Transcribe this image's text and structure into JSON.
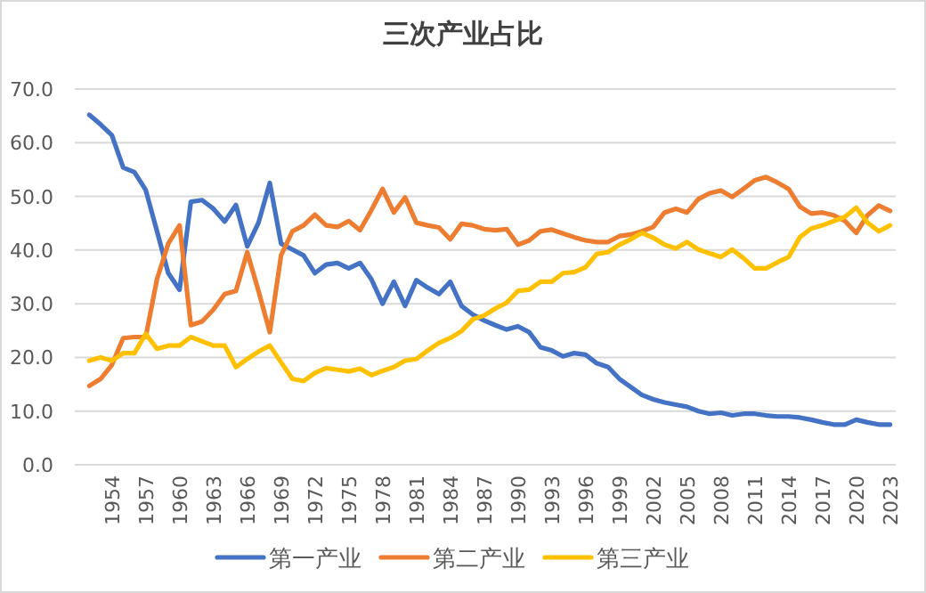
{
  "chart_data": {
    "type": "line",
    "title": "三次产业占比",
    "categories": [
      null,
      null,
      "1954",
      null,
      null,
      "1957",
      null,
      null,
      "1960",
      null,
      null,
      "1963",
      null,
      null,
      "1966",
      null,
      null,
      "1969",
      null,
      null,
      "1972",
      null,
      null,
      "1975",
      null,
      null,
      "1978",
      null,
      null,
      "1981",
      null,
      null,
      "1984",
      null,
      null,
      "1987",
      null,
      null,
      "1990",
      null,
      null,
      "1993",
      null,
      null,
      "1996",
      null,
      null,
      "1999",
      null,
      null,
      "2002",
      null,
      null,
      "2005",
      null,
      null,
      "2008",
      null,
      null,
      "2011",
      null,
      null,
      "2014",
      null,
      null,
      "2017",
      null,
      null,
      "2020",
      null,
      null,
      "2023"
    ],
    "series": [
      {
        "name": "第一产业",
        "color": "#4472c4",
        "values": [
          65.2,
          63.4,
          61.4,
          55.4,
          54.5,
          51.2,
          43.5,
          35.7,
          32.6,
          49.0,
          49.3,
          47.7,
          45.3,
          48.4,
          40.7,
          45.1,
          52.5,
          41.2,
          40.1,
          39.0,
          35.7,
          37.3,
          37.6,
          36.6,
          37.6,
          34.6,
          30.0,
          34.1,
          29.6,
          34.4,
          33.0,
          31.8,
          34.1,
          29.6,
          28.0,
          26.9,
          26.0,
          25.2,
          25.8,
          24.7,
          21.9,
          21.3,
          20.2,
          20.8,
          20.5,
          18.9,
          18.2,
          16.0,
          14.5,
          13.0,
          12.2,
          11.6,
          11.2,
          10.8,
          10.0,
          9.5,
          9.7,
          9.2,
          9.5,
          9.5,
          9.2,
          9.0,
          9.0,
          8.8,
          8.4,
          7.9,
          7.5,
          7.5,
          8.4,
          7.9,
          7.5,
          7.5
        ]
      },
      {
        "name": "第二产业",
        "color": "#ed7d31",
        "values": [
          14.7,
          16.0,
          18.6,
          23.6,
          23.8,
          23.8,
          34.6,
          41.2,
          44.6,
          26.0,
          26.7,
          28.9,
          31.8,
          32.4,
          39.6,
          32.4,
          24.7,
          39.0,
          43.5,
          44.6,
          46.6,
          44.6,
          44.3,
          45.4,
          43.7,
          47.4,
          51.4,
          47.0,
          49.8,
          45.1,
          44.6,
          44.2,
          42.0,
          44.9,
          44.6,
          43.9,
          43.7,
          43.9,
          41.0,
          41.8,
          43.5,
          43.8,
          43.1,
          42.4,
          41.8,
          41.5,
          41.5,
          42.6,
          42.9,
          43.5,
          44.3,
          47.0,
          47.7,
          47.0,
          49.5,
          50.6,
          51.1,
          49.9,
          51.4,
          53.0,
          53.6,
          52.6,
          51.4,
          48.1,
          46.8,
          47.0,
          46.5,
          45.4,
          43.2,
          46.5,
          48.3,
          47.3
        ]
      },
      {
        "name": "第三产业",
        "color": "#ffc000",
        "values": [
          19.4,
          20.0,
          19.4,
          20.8,
          20.8,
          24.4,
          21.6,
          22.2,
          22.2,
          23.8,
          23.0,
          22.2,
          22.2,
          18.2,
          19.7,
          21.1,
          22.2,
          19.1,
          16.0,
          15.6,
          17.1,
          18.0,
          17.7,
          17.4,
          17.9,
          16.7,
          17.5,
          18.2,
          19.4,
          19.7,
          21.3,
          22.7,
          23.6,
          24.9,
          27.1,
          27.8,
          29.1,
          30.2,
          32.4,
          32.6,
          34.1,
          34.1,
          35.7,
          35.9,
          36.8,
          39.3,
          39.6,
          41.0,
          42.0,
          43.2,
          42.3,
          41.0,
          40.3,
          41.5,
          40.1,
          39.4,
          38.7,
          40.1,
          38.5,
          36.6,
          36.6,
          37.7,
          38.7,
          42.4,
          44.0,
          44.6,
          45.4,
          46.2,
          47.9,
          45.1,
          43.5,
          44.6
        ]
      }
    ],
    "ylim": [
      0,
      70
    ],
    "yticks": [
      {
        "value": 0,
        "label": "0.0"
      },
      {
        "value": 10,
        "label": "10.0"
      },
      {
        "value": 20,
        "label": "20.0"
      },
      {
        "value": 30,
        "label": "30.0"
      },
      {
        "value": 40,
        "label": "40.0"
      },
      {
        "value": 50,
        "label": "50.0"
      },
      {
        "value": 60,
        "label": "60.0"
      },
      {
        "value": 70,
        "label": "70.0"
      }
    ],
    "grid": "y",
    "legend": "bottom"
  }
}
